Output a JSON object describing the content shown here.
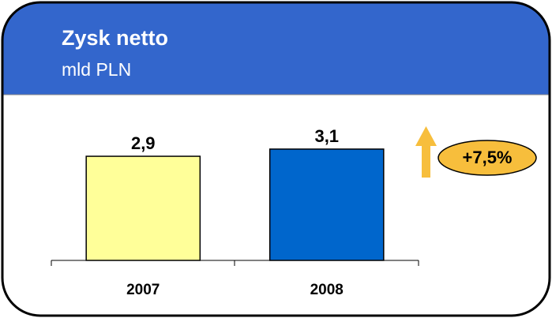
{
  "chart_data": {
    "type": "bar",
    "title": "Zysk netto",
    "subtitle": "mld PLN",
    "categories": [
      "2007",
      "2008"
    ],
    "values": [
      2.9,
      3.1
    ],
    "value_labels": [
      "2,9",
      "3,1"
    ],
    "colors": [
      "#ffff99",
      "#0066cc"
    ],
    "ylim": [
      0,
      4
    ],
    "annotation": "+7,5%"
  }
}
